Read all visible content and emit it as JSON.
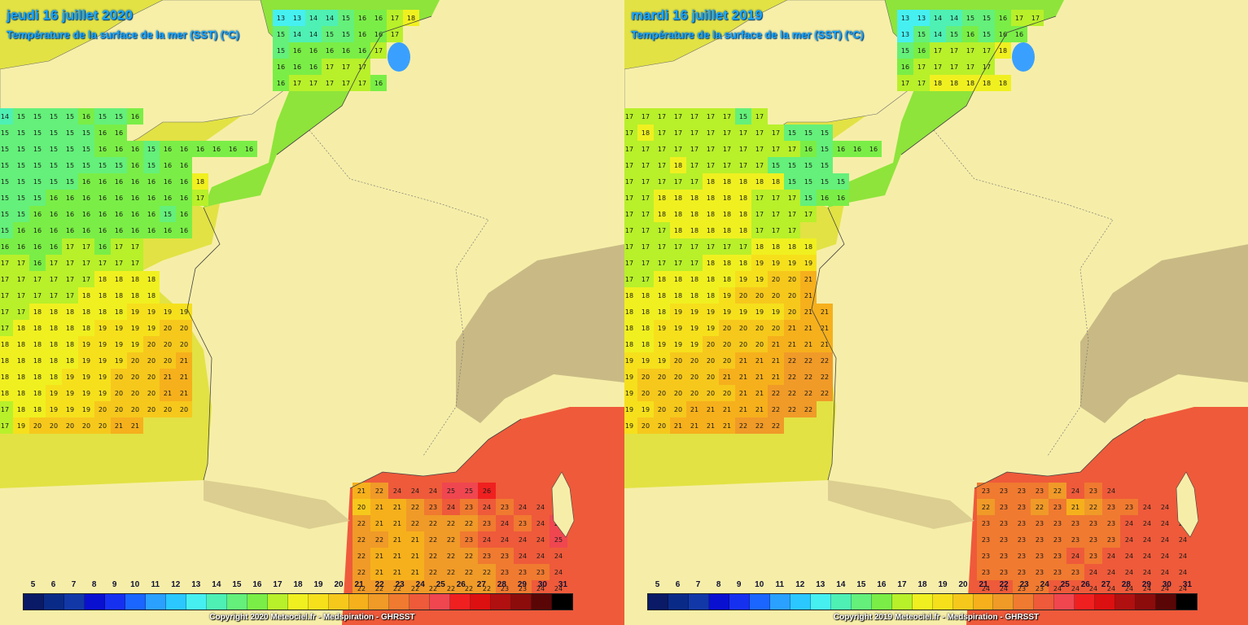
{
  "panels": [
    {
      "title": "jeudi 16 juillet 2020",
      "subtitle": "Température de la surface de la mer (SST) (°C)",
      "copyright": "Copyright 2020 Meteociel.fr - Medspiration - GHRSST",
      "atlantic_rows": [
        [
          14,
          15,
          15,
          15,
          15,
          16,
          15,
          15,
          16
        ],
        [
          15,
          15,
          15,
          15,
          15,
          15,
          16,
          16
        ],
        [
          15,
          15,
          15,
          15,
          15,
          15,
          16,
          16,
          16,
          15,
          16,
          16,
          16,
          16,
          16,
          16
        ],
        [
          15,
          15,
          15,
          15,
          15,
          15,
          15,
          15,
          16,
          15,
          16,
          16
        ],
        [
          15,
          15,
          15,
          15,
          15,
          16,
          16,
          16,
          16,
          16,
          16,
          16,
          18
        ],
        [
          15,
          15,
          15,
          16,
          16,
          16,
          16,
          16,
          16,
          16,
          16,
          16,
          17
        ],
        [
          15,
          15,
          16,
          16,
          16,
          16,
          16,
          16,
          16,
          16,
          15,
          16
        ],
        [
          15,
          16,
          16,
          16,
          16,
          16,
          16,
          16,
          16,
          16,
          16,
          16
        ],
        [
          16,
          16,
          16,
          16,
          17,
          17,
          16,
          17,
          17
        ],
        [
          17,
          17,
          16,
          17,
          17,
          17,
          17,
          17,
          17
        ],
        [
          17,
          17,
          17,
          17,
          17,
          17,
          18,
          18,
          18,
          18
        ],
        [
          17,
          17,
          17,
          17,
          17,
          18,
          18,
          18,
          18,
          18
        ],
        [
          17,
          17,
          18,
          18,
          18,
          18,
          18,
          18,
          19,
          19,
          19,
          19
        ],
        [
          17,
          18,
          18,
          18,
          18,
          18,
          19,
          19,
          19,
          19,
          20,
          20
        ],
        [
          18,
          18,
          18,
          18,
          18,
          19,
          19,
          19,
          19,
          20,
          20,
          20
        ],
        [
          18,
          18,
          18,
          18,
          18,
          19,
          19,
          19,
          20,
          20,
          20,
          21
        ],
        [
          18,
          18,
          18,
          18,
          19,
          19,
          19,
          20,
          20,
          20,
          21,
          21
        ],
        [
          18,
          18,
          18,
          19,
          19,
          19,
          19,
          20,
          20,
          20,
          21,
          21
        ],
        [
          17,
          18,
          18,
          19,
          19,
          19,
          20,
          20,
          20,
          20,
          20,
          20
        ],
        [
          17,
          19,
          20,
          20,
          20,
          20,
          20,
          21,
          21
        ]
      ],
      "channel_rows": [
        [
          13,
          13,
          14,
          14,
          15,
          16,
          16,
          17,
          18
        ],
        [
          15,
          14,
          14,
          15,
          15,
          16,
          16,
          17
        ],
        [
          15,
          16,
          16,
          16,
          16,
          16,
          17
        ],
        [
          16,
          16,
          16,
          17,
          17,
          17
        ],
        [
          16,
          17,
          17,
          17,
          17,
          17,
          16
        ]
      ],
      "med_rows": [
        [
          21,
          22,
          24,
          24,
          24,
          25,
          25,
          26
        ],
        [
          20,
          21,
          21,
          22,
          23,
          24,
          23,
          24,
          23,
          24,
          24,
          24
        ],
        [
          22,
          21,
          21,
          22,
          22,
          22,
          22,
          23,
          24,
          23,
          24,
          25
        ],
        [
          22,
          22,
          21,
          21,
          22,
          22,
          23,
          24,
          24,
          24,
          24,
          25
        ],
        [
          22,
          21,
          21,
          21,
          22,
          22,
          22,
          23,
          23,
          24,
          24,
          24
        ],
        [
          22,
          21,
          21,
          21,
          22,
          22,
          22,
          22,
          23,
          23,
          23,
          24
        ],
        [
          22,
          22,
          22,
          22,
          22,
          22,
          22,
          22,
          23,
          23,
          24,
          24
        ]
      ]
    },
    {
      "title": "mardi 16 juillet 2019",
      "subtitle": "Température de la surface de la mer (SST) (°C)",
      "copyright": "Copyright 2019 Meteociel.fr - Medspiration - GHRSST",
      "atlantic_rows": [
        [
          17,
          17,
          17,
          17,
          17,
          17,
          17,
          15,
          17
        ],
        [
          17,
          18,
          17,
          17,
          17,
          17,
          17,
          17,
          17,
          17,
          15,
          15,
          15
        ],
        [
          17,
          17,
          17,
          17,
          17,
          17,
          17,
          17,
          17,
          17,
          17,
          16,
          15,
          16,
          16,
          16
        ],
        [
          17,
          17,
          17,
          18,
          17,
          17,
          17,
          17,
          17,
          15,
          15,
          15,
          15
        ],
        [
          17,
          17,
          17,
          17,
          17,
          18,
          18,
          18,
          18,
          18,
          15,
          15,
          15,
          15
        ],
        [
          17,
          17,
          18,
          18,
          18,
          18,
          18,
          18,
          17,
          17,
          17,
          15,
          16,
          16
        ],
        [
          17,
          17,
          18,
          18,
          18,
          18,
          18,
          18,
          17,
          17,
          17,
          17
        ],
        [
          17,
          17,
          17,
          18,
          18,
          18,
          18,
          18,
          17,
          17,
          17
        ],
        [
          17,
          17,
          17,
          17,
          17,
          17,
          17,
          17,
          18,
          18,
          18,
          18
        ],
        [
          17,
          17,
          17,
          17,
          17,
          18,
          18,
          18,
          19,
          19,
          19,
          19
        ],
        [
          17,
          17,
          18,
          18,
          18,
          18,
          18,
          19,
          19,
          20,
          20,
          21
        ],
        [
          18,
          18,
          18,
          18,
          18,
          18,
          19,
          20,
          20,
          20,
          20,
          21
        ],
        [
          18,
          18,
          18,
          19,
          19,
          19,
          19,
          19,
          19,
          19,
          20,
          21,
          21
        ],
        [
          18,
          18,
          19,
          19,
          19,
          19,
          20,
          20,
          20,
          20,
          21,
          21,
          21
        ],
        [
          18,
          18,
          19,
          19,
          19,
          20,
          20,
          20,
          20,
          21,
          21,
          21,
          21
        ],
        [
          19,
          19,
          19,
          20,
          20,
          20,
          20,
          21,
          21,
          21,
          22,
          22,
          22
        ],
        [
          19,
          20,
          20,
          20,
          20,
          20,
          21,
          21,
          21,
          21,
          22,
          22,
          22
        ],
        [
          19,
          20,
          20,
          20,
          20,
          20,
          20,
          21,
          21,
          22,
          22,
          22,
          22
        ],
        [
          19,
          19,
          20,
          20,
          21,
          21,
          21,
          21,
          21,
          22,
          22,
          22
        ],
        [
          19,
          20,
          20,
          21,
          21,
          21,
          21,
          22,
          22,
          22
        ]
      ],
      "channel_rows": [
        [
          13,
          13,
          14,
          14,
          15,
          15,
          16,
          17,
          17
        ],
        [
          13,
          15,
          14,
          15,
          16,
          15,
          16,
          16
        ],
        [
          15,
          16,
          17,
          17,
          17,
          17,
          18
        ],
        [
          16,
          17,
          17,
          17,
          17,
          17
        ],
        [
          17,
          17,
          18,
          18,
          18,
          18,
          18
        ]
      ],
      "med_rows": [
        [
          23,
          23,
          23,
          23,
          22,
          24,
          23,
          24
        ],
        [
          22,
          23,
          23,
          22,
          23,
          21,
          22,
          23,
          23,
          24,
          24,
          24
        ],
        [
          23,
          23,
          23,
          23,
          23,
          23,
          23,
          23,
          24,
          24,
          24,
          24
        ],
        [
          23,
          23,
          23,
          23,
          23,
          23,
          23,
          23,
          24,
          24,
          24,
          24
        ],
        [
          23,
          23,
          23,
          23,
          23,
          24,
          23,
          24,
          24,
          24,
          24,
          24
        ],
        [
          23,
          23,
          23,
          23,
          23,
          23,
          24,
          24,
          24,
          24,
          24,
          24
        ],
        [
          24,
          24,
          23,
          23,
          24,
          24,
          24,
          24,
          24,
          24,
          24,
          24
        ]
      ]
    }
  ],
  "legend": {
    "values": [
      "5",
      "6",
      "7",
      "8",
      "9",
      "10",
      "11",
      "12",
      "13",
      "14",
      "15",
      "16",
      "17",
      "18",
      "19",
      "20",
      "21",
      "22",
      "23",
      "24",
      "25",
      "26",
      "27",
      "28",
      "29",
      "30",
      "31"
    ],
    "colors": [
      "#0a1a66",
      "#0a2a88",
      "#1238a8",
      "#0a10d0",
      "#1630f0",
      "#1a66ff",
      "#2aa0ff",
      "#2ac8ff",
      "#46f0f0",
      "#4ef0b4",
      "#64f07a",
      "#7aee46",
      "#b8f02a",
      "#f0f020",
      "#f6e01c",
      "#f6c81c",
      "#f6b01c",
      "#f09a28",
      "#f07a30",
      "#ee5a3a",
      "#f04650",
      "#f02020",
      "#dc1010",
      "#b01010",
      "#8c0c0c",
      "#5a0606",
      "#000000"
    ]
  }
}
